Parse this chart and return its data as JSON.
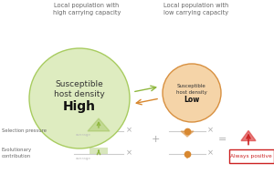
{
  "bg_color": "#ffffff",
  "title_left": "Local population with\nhigh carrying capacity",
  "title_right": "Local population with\nlow carrying capacity",
  "big_circle_color": "#deecc0",
  "big_circle_edge": "#a8cc60",
  "small_circle_color": "#f5d4a8",
  "small_circle_edge": "#d89040",
  "big_circle_text1": "Susceptible\nhost density",
  "big_circle_text2": "High",
  "small_circle_text1": "Susceptible\nhost density",
  "small_circle_text2": "Low",
  "arrow_color_green": "#90b840",
  "arrow_color_orange": "#d88830",
  "label_sel": "Selection pressure",
  "label_evo": "Evolutionary\ncontribution",
  "always_positive_text": "Always positive",
  "always_positive_box_color": "#cc2222",
  "green_fill_color": "#90b840",
  "orange_dot_color": "#d88830",
  "avg_text_color": "#bbbbbb",
  "line_color": "#cccccc",
  "operator_color": "#aaaaaa",
  "label_color": "#666666"
}
